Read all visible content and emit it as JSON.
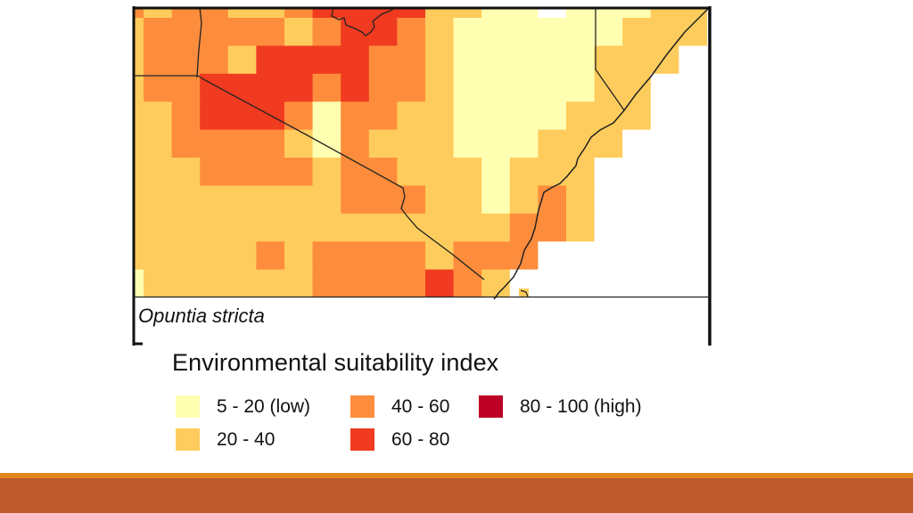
{
  "map": {
    "species_caption": "Opuntia stricta",
    "legend": {
      "title": "Environmental suitability index",
      "classes": [
        {
          "label": "5 - 20 (low)",
          "color": "#FFFFB2"
        },
        {
          "label": "20 - 40",
          "color": "#FECC5C"
        },
        {
          "label": "40 - 60",
          "color": "#FD8D3C"
        },
        {
          "label": "60 - 80",
          "color": "#F03B20"
        },
        {
          "label": "80 - 100 (high)",
          "color": "#BD0026"
        }
      ]
    },
    "no_data_color": "#FFFFFF",
    "border_color": "#222222",
    "grid_class_codes_note": "0 = no data / sea, 1..5 = legend class index",
    "grid": [
      [
        3,
        2,
        3,
        3,
        2,
        2,
        3,
        4,
        4,
        4,
        4,
        2,
        2,
        1,
        1,
        0,
        1,
        1,
        1,
        2,
        2,
        0
      ],
      [
        2,
        3,
        3,
        3,
        3,
        3,
        2,
        3,
        4,
        4,
        3,
        2,
        1,
        1,
        1,
        1,
        1,
        1,
        2,
        2,
        2,
        0
      ],
      [
        2,
        3,
        3,
        3,
        2,
        4,
        4,
        4,
        4,
        3,
        3,
        2,
        1,
        1,
        1,
        1,
        1,
        2,
        2,
        2,
        0,
        0
      ],
      [
        2,
        3,
        3,
        4,
        4,
        4,
        4,
        3,
        4,
        3,
        3,
        2,
        1,
        1,
        1,
        1,
        1,
        2,
        2,
        0,
        0,
        0
      ],
      [
        2,
        2,
        3,
        4,
        4,
        4,
        3,
        1,
        3,
        3,
        2,
        2,
        1,
        1,
        1,
        1,
        2,
        2,
        2,
        0,
        0,
        0
      ],
      [
        2,
        2,
        3,
        3,
        3,
        3,
        2,
        1,
        3,
        2,
        2,
        2,
        1,
        1,
        1,
        2,
        2,
        2,
        0,
        0,
        0,
        0
      ],
      [
        2,
        2,
        2,
        3,
        3,
        3,
        3,
        2,
        3,
        3,
        2,
        2,
        2,
        1,
        2,
        2,
        2,
        0,
        0,
        0,
        0,
        0
      ],
      [
        2,
        2,
        2,
        2,
        2,
        2,
        2,
        2,
        3,
        3,
        3,
        2,
        2,
        1,
        2,
        3,
        2,
        0,
        0,
        0,
        0,
        0
      ],
      [
        2,
        2,
        2,
        2,
        2,
        2,
        2,
        2,
        2,
        2,
        2,
        2,
        2,
        2,
        3,
        3,
        2,
        0,
        0,
        0,
        0,
        0
      ],
      [
        2,
        2,
        2,
        2,
        2,
        3,
        2,
        3,
        3,
        3,
        3,
        2,
        3,
        3,
        3,
        0,
        0,
        0,
        0,
        0,
        0,
        0
      ],
      [
        1,
        2,
        2,
        2,
        2,
        2,
        2,
        3,
        3,
        3,
        3,
        4,
        3,
        2,
        0,
        0,
        0,
        0,
        0,
        0,
        0,
        0
      ]
    ]
  },
  "footer": {
    "stripe_color": "#E0861E",
    "bar_color": "#BC5A2C"
  }
}
